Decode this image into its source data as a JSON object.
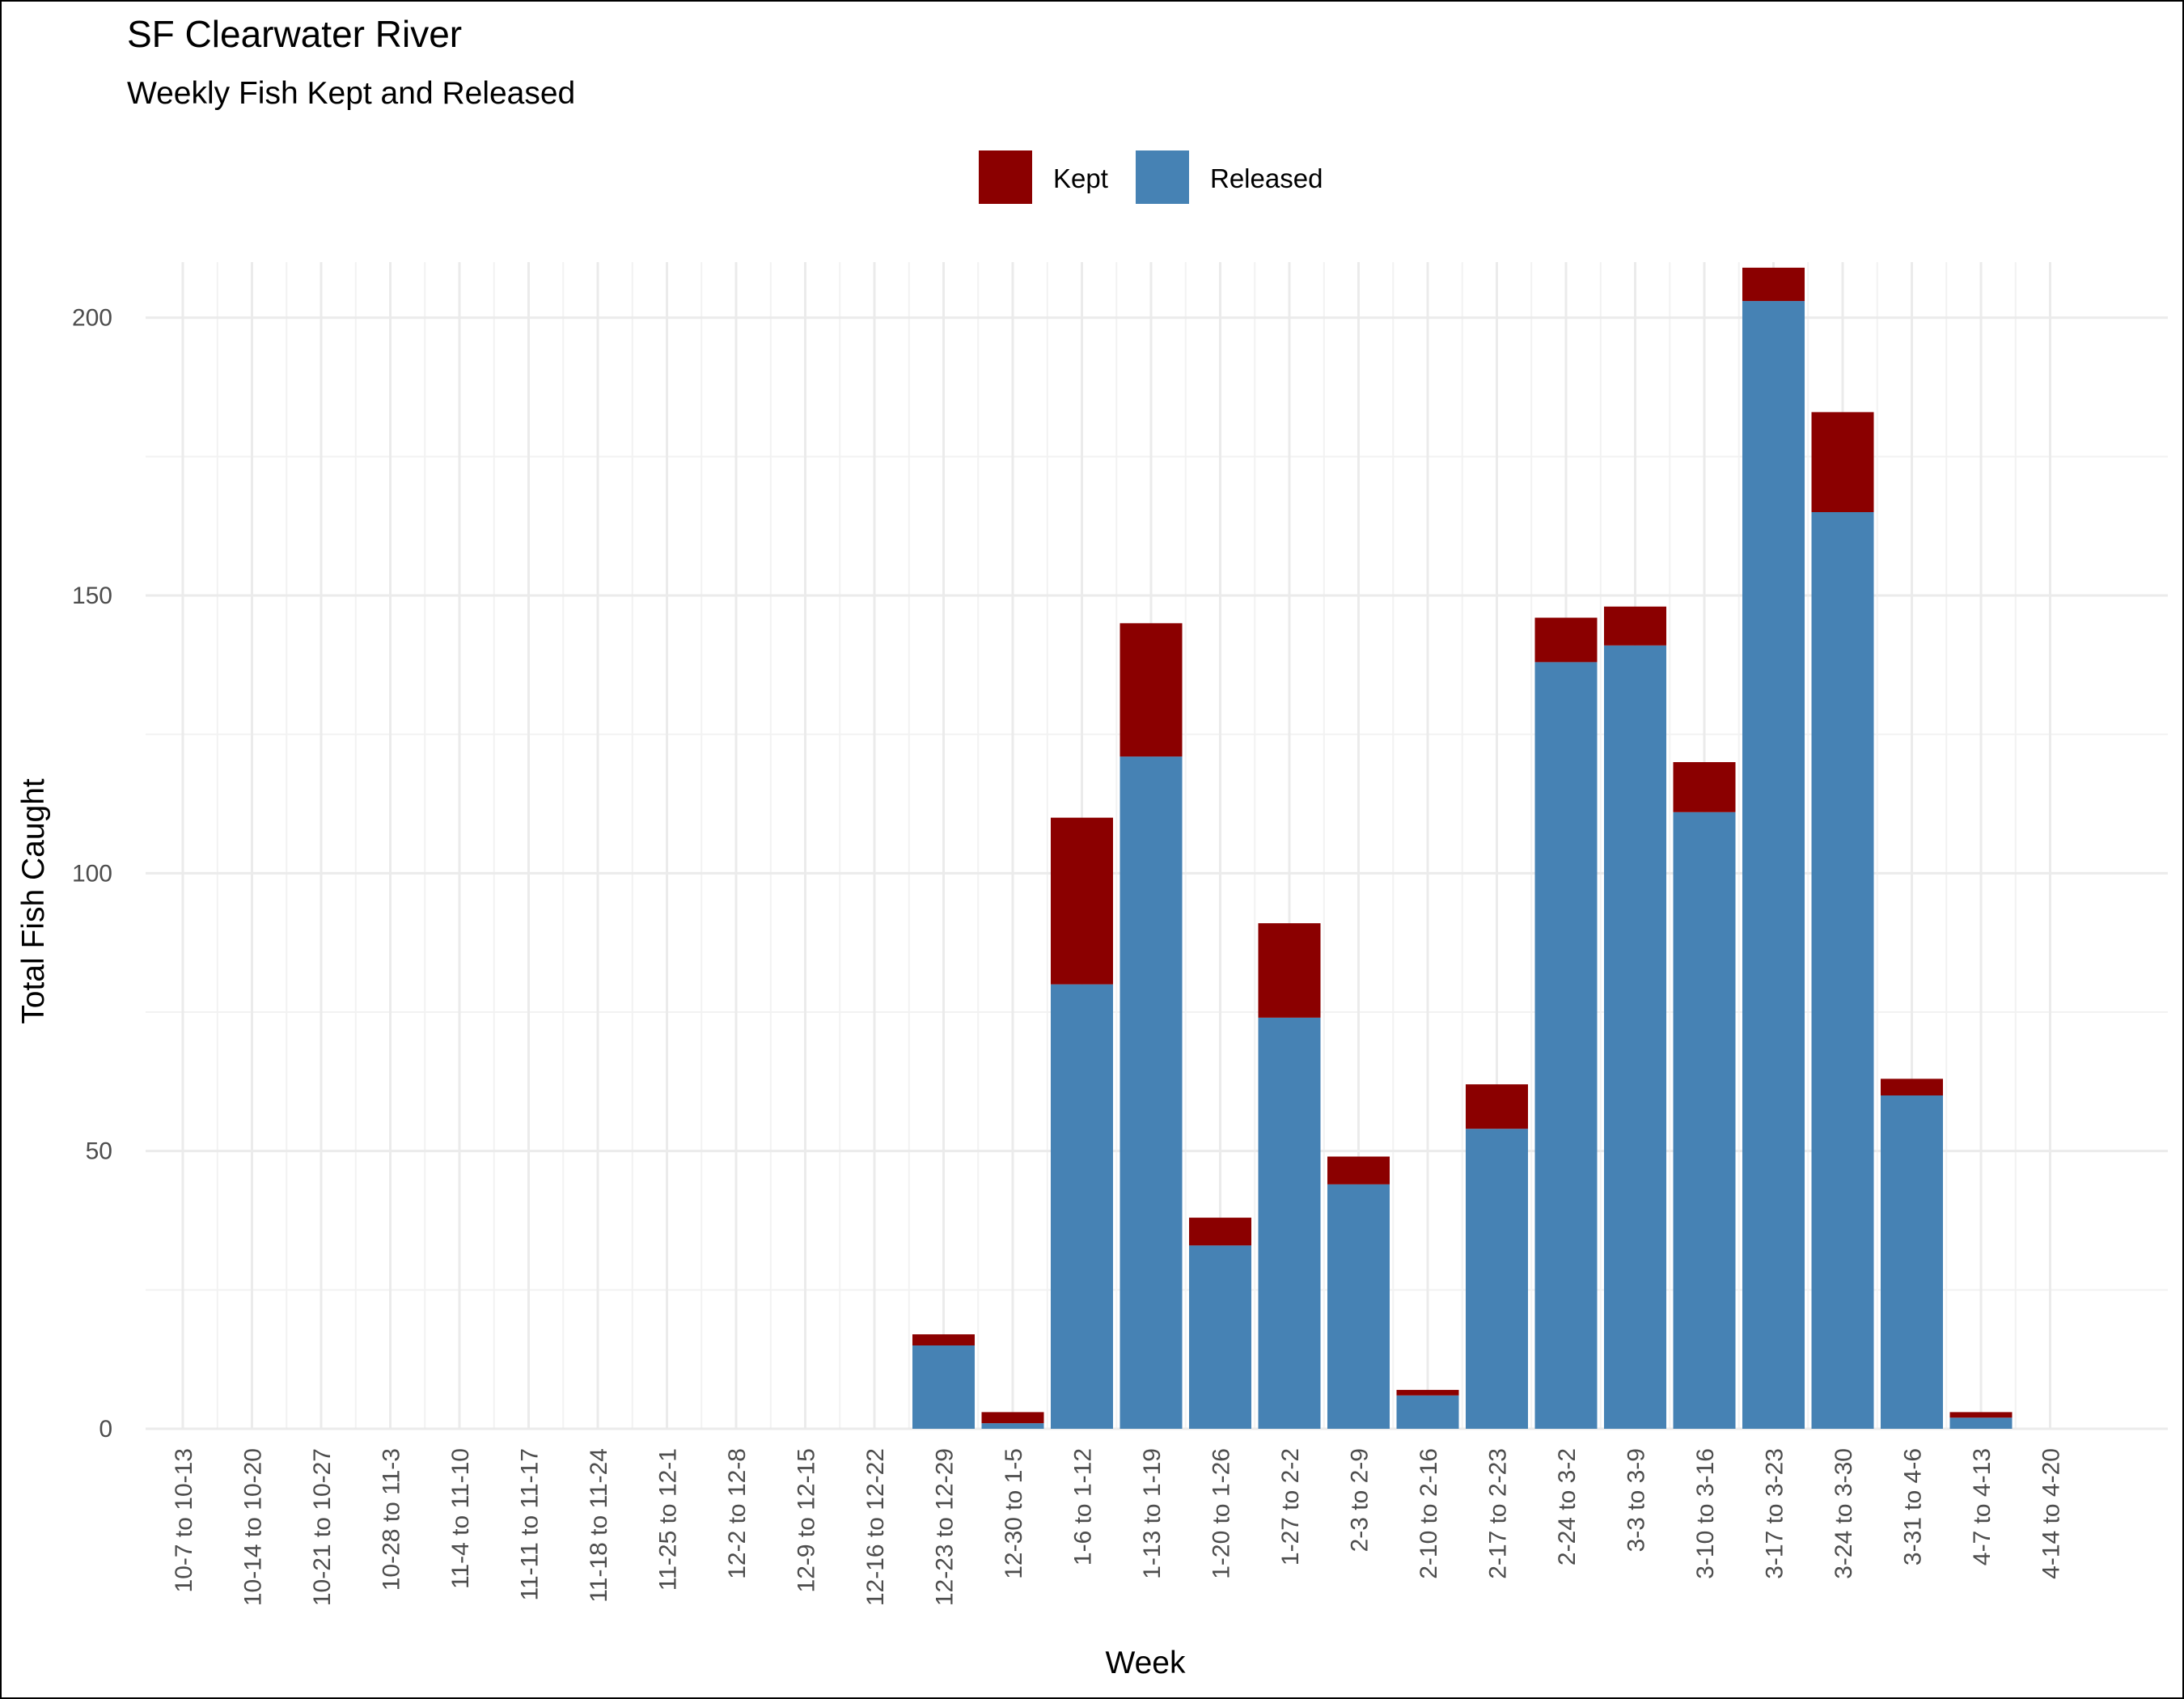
{
  "chart_data": {
    "type": "bar",
    "stacked": true,
    "title": "SF Clearwater River",
    "subtitle": "Weekly Fish Kept and Released",
    "xlabel": "Week",
    "ylabel": "Total Fish Caught",
    "ylim": [
      0,
      210
    ],
    "yticks": [
      0,
      50,
      100,
      150,
      200
    ],
    "grid": true,
    "legend_position": "top",
    "categories": [
      "10-7 to 10-13",
      "10-14 to 10-20",
      "10-21 to 10-27",
      "10-28 to 11-3",
      "11-4 to 11-10",
      "11-11 to 11-17",
      "11-18 to 11-24",
      "11-25 to 12-1",
      "12-2 to 12-8",
      "12-9 to 12-15",
      "12-16 to 12-22",
      "12-23 to 12-29",
      "12-30 to 1-5",
      "1-6 to 1-12",
      "1-13 to 1-19",
      "1-20 to 1-26",
      "1-27 to 2-2",
      "2-3 to 2-9",
      "2-10 to 2-16",
      "2-17 to 2-23",
      "2-24 to 3-2",
      "3-3 to 3-9",
      "3-10 to 3-16",
      "3-17 to 3-23",
      "3-24 to 3-30",
      "3-31 to 4-6",
      "4-7 to 4-13",
      "4-14 to 4-20"
    ],
    "series": [
      {
        "name": "Released",
        "color": "#4682b4",
        "values": [
          0,
          0,
          0,
          0,
          0,
          0,
          0,
          0,
          0,
          0,
          0,
          15,
          1,
          80,
          121,
          33,
          74,
          44,
          6,
          54,
          138,
          141,
          111,
          203,
          165,
          60,
          2,
          0
        ]
      },
      {
        "name": "Kept",
        "color": "#8b0000",
        "values": [
          0,
          0,
          0,
          0,
          0,
          0,
          0,
          0,
          0,
          0,
          0,
          2,
          2,
          30,
          24,
          5,
          17,
          5,
          1,
          8,
          8,
          7,
          9,
          6,
          18,
          3,
          1,
          0
        ]
      }
    ],
    "legend": [
      {
        "name": "Kept",
        "color": "#8b0000"
      },
      {
        "name": "Released",
        "color": "#4682b4"
      }
    ]
  }
}
